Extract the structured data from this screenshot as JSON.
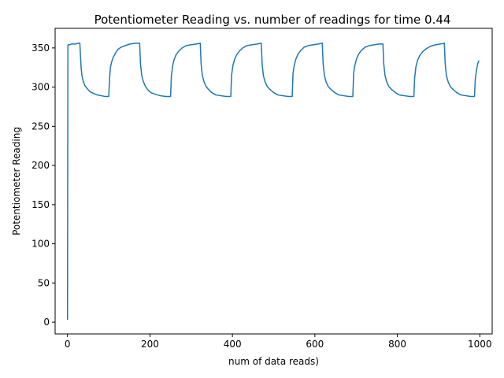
{
  "chart_data": {
    "type": "line",
    "title": "Potentiometer Reading vs. number of readings for time 0.44",
    "xlabel": "num of data reads)",
    "ylabel": "Potentiometer Reading",
    "xlim": [
      -30,
      1030
    ],
    "ylim": [
      -15,
      375
    ],
    "xticks": [
      0,
      200,
      400,
      600,
      800,
      1000
    ],
    "yticks": [
      0,
      50,
      100,
      150,
      200,
      250,
      300,
      350
    ],
    "grid": false,
    "legend": "none",
    "colors": {
      "series": "#1f77b4"
    },
    "series": [
      {
        "x": [
          0,
          1,
          2,
          5,
          10,
          15,
          20,
          25,
          30,
          31,
          33,
          35,
          38,
          42,
          48,
          55,
          63,
          72,
          82,
          92,
          100,
          102,
          104,
          107,
          111,
          116,
          122,
          130,
          140,
          152,
          165,
          175,
          177,
          180,
          184,
          188,
          194,
          202,
          212,
          225,
          238,
          250,
          252,
          255,
          258,
          263,
          270,
          278,
          288,
          300,
          312,
          322,
          324,
          327,
          331,
          336,
          342,
          350,
          360,
          372,
          385,
          396,
          398,
          401,
          405,
          410,
          417,
          425,
          435,
          447,
          460,
          470,
          472,
          475,
          479,
          484,
          491,
          500,
          510,
          522,
          535,
          545,
          547,
          550,
          554,
          559,
          566,
          574,
          584,
          596,
          608,
          618,
          620,
          623,
          627,
          632,
          639,
          648,
          658,
          670,
          682,
          692,
          694,
          697,
          701,
          706,
          713,
          722,
          732,
          744,
          755,
          765,
          767,
          770,
          774,
          779,
          786,
          795,
          805,
          817,
          830,
          840,
          842,
          845,
          849,
          854,
          861,
          870,
          880,
          892,
          904,
          914,
          916,
          919,
          923,
          928,
          935,
          944,
          954,
          966,
          978,
          987,
          989,
          992,
          995,
          998
        ],
        "y": [
          3,
          353,
          354,
          354,
          355,
          355,
          355,
          356,
          356,
          345,
          325,
          315,
          308,
          302,
          298,
          294,
          292,
          290,
          289,
          288,
          288,
          310,
          325,
          332,
          338,
          343,
          348,
          351,
          353,
          355,
          356,
          356,
          330,
          315,
          307,
          302,
          297,
          293,
          291,
          289,
          288,
          288,
          315,
          327,
          334,
          341,
          346,
          350,
          353,
          354,
          355,
          356,
          330,
          315,
          307,
          301,
          297,
          293,
          290,
          289,
          288,
          288,
          315,
          327,
          335,
          341,
          346,
          350,
          353,
          354,
          355,
          356,
          330,
          315,
          307,
          301,
          297,
          293,
          290,
          289,
          288,
          288,
          318,
          328,
          336,
          342,
          347,
          351,
          353,
          354,
          355,
          356,
          330,
          315,
          307,
          301,
          297,
          293,
          290,
          289,
          288,
          288,
          318,
          328,
          336,
          342,
          347,
          351,
          353,
          354,
          355,
          355,
          330,
          315,
          307,
          301,
          297,
          293,
          290,
          289,
          288,
          288,
          312,
          326,
          334,
          340,
          345,
          349,
          352,
          354,
          355,
          356,
          330,
          315,
          307,
          301,
          297,
          293,
          290,
          289,
          288,
          288,
          310,
          322,
          330,
          334
        ]
      }
    ]
  }
}
